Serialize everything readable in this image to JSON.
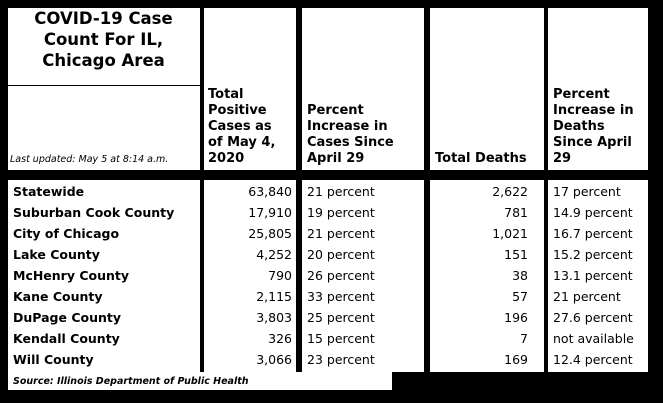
{
  "title": "COVID-19 Case\nCount For IL,\nChicago Area",
  "last_updated": "Last updated: May 5 at 8:14 a.m.",
  "headers": {
    "total_cases": "Total\nPositive\nCases as\nof May 4,\n2020",
    "pct_cases": "Percent\nIncrease in\nCases Since\nApril 29",
    "total_deaths": "Total Deaths",
    "pct_deaths": "Percent\nIncrease in\nDeaths\nSince April\n29"
  },
  "rows": [
    {
      "county": "Statewide",
      "cases": "63,840",
      "pct_cases": "21 percent",
      "deaths": "2,622",
      "pct_deaths": "17 percent"
    },
    {
      "county": "Suburban Cook County",
      "cases": "17,910",
      "pct_cases": "19 percent",
      "deaths": "781",
      "pct_deaths": "14.9 percent"
    },
    {
      "county": "City of Chicago",
      "cases": "25,805",
      "pct_cases": "21 percent",
      "deaths": "1,021",
      "pct_deaths": "16.7 percent"
    },
    {
      "county": "Lake County",
      "cases": "4,252",
      "pct_cases": "20 percent",
      "deaths": "151",
      "pct_deaths": "15.2 percent"
    },
    {
      "county": "McHenry County",
      "cases": "790",
      "pct_cases": "26 percent",
      "deaths": "38",
      "pct_deaths": "13.1 percent"
    },
    {
      "county": "Kane County",
      "cases": "2,115",
      "pct_cases": "33 percent",
      "deaths": "57",
      "pct_deaths": "21 percent"
    },
    {
      "county": "DuPage County",
      "cases": "3,803",
      "pct_cases": "25 percent",
      "deaths": "196",
      "pct_deaths": "27.6 percent"
    },
    {
      "county": "Kendall County",
      "cases": "326",
      "pct_cases": "15 percent",
      "deaths": "7",
      "pct_deaths": "not available"
    },
    {
      "county": "Will County",
      "cases": "3,066",
      "pct_cases": "23 percent",
      "deaths": "169",
      "pct_deaths": "12.4 percent"
    }
  ],
  "source": "Source: Illinois Department of Public Health"
}
